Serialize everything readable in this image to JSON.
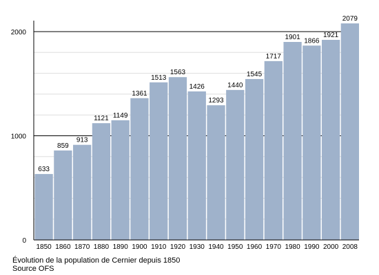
{
  "chart_data": {
    "type": "bar",
    "categories": [
      "1850",
      "1860",
      "1870",
      "1880",
      "1890",
      "1900",
      "1910",
      "1920",
      "1930",
      "1940",
      "1950",
      "1960",
      "1970",
      "1980",
      "1990",
      "2000",
      "2008"
    ],
    "values": [
      633,
      859,
      913,
      1121,
      1149,
      1361,
      1513,
      1563,
      1426,
      1293,
      1440,
      1545,
      1717,
      1901,
      1866,
      1921,
      2079
    ],
    "y_ticks": [
      "0",
      "1000",
      "2000"
    ],
    "ylim": [
      0,
      2000
    ],
    "grid": true,
    "bar_color": "#9fb2cb",
    "grid_color": "#dddddd"
  },
  "caption": {
    "line1": "Évolution de la population de Cernier depuis 1850",
    "line2": "Source OFS"
  }
}
